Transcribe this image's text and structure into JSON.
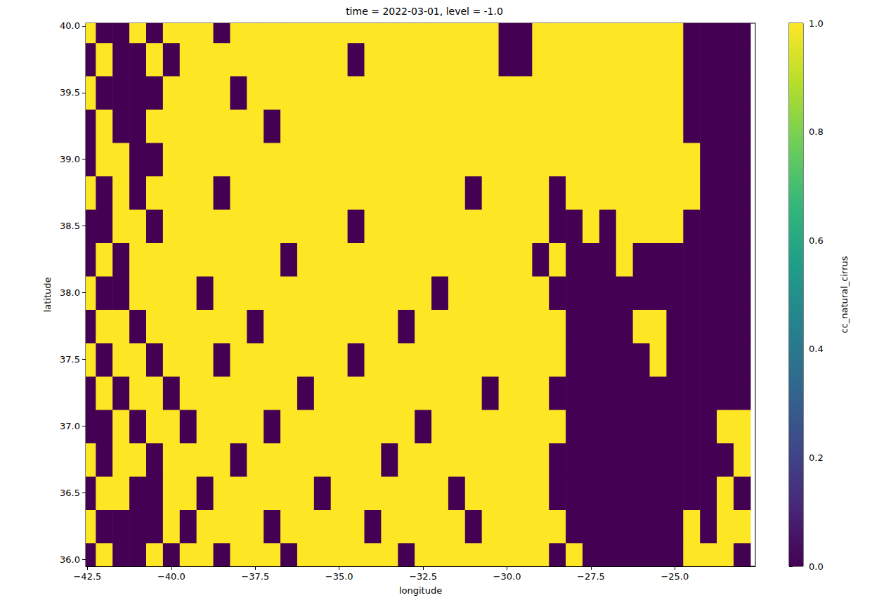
{
  "chart_data": {
    "type": "heatmap",
    "title": "time = 2022-03-01, level = -1.0",
    "xlabel": "longitude",
    "ylabel": "latitude",
    "grid": false,
    "x": [
      -42.5,
      -42.0,
      -41.5,
      -41.0,
      -40.5,
      -40.0,
      -39.5,
      -39.0,
      -38.5,
      -38.0,
      -37.5,
      -37.0,
      -36.5,
      -36.0,
      -35.5,
      -35.0,
      -34.5,
      -34.0,
      -33.5,
      -33.0,
      -32.5,
      -32.0,
      -31.5,
      -31.0,
      -30.5,
      -30.0,
      -29.5,
      -29.0,
      -28.5,
      -28.0,
      -27.5,
      -27.0,
      -26.5,
      -26.0,
      -25.5,
      -25.0,
      -24.5,
      -24.0,
      -23.5,
      -23.0
    ],
    "y": [
      36.0,
      36.25,
      36.5,
      36.75,
      37.0,
      37.25,
      37.5,
      37.75,
      38.0,
      38.25,
      38.5,
      38.75,
      39.0,
      39.25,
      39.5,
      39.75,
      40.0
    ],
    "z": [
      [
        0,
        1,
        0,
        0,
        1,
        0,
        1,
        1,
        0,
        1,
        1,
        1,
        0,
        1,
        1,
        1,
        1,
        1,
        1,
        0,
        1,
        1,
        1,
        1,
        1,
        1,
        1,
        1,
        0,
        1,
        0,
        0,
        0,
        0,
        0,
        0,
        1,
        1,
        1,
        0
      ],
      [
        1,
        0,
        0,
        0,
        0,
        1,
        0,
        1,
        1,
        1,
        1,
        0,
        1,
        1,
        1,
        1,
        1,
        0,
        1,
        1,
        1,
        1,
        1,
        0,
        1,
        1,
        1,
        1,
        1,
        0,
        0,
        0,
        0,
        0,
        0,
        0,
        1,
        0,
        1,
        1
      ],
      [
        0,
        1,
        1,
        0,
        0,
        1,
        1,
        0,
        1,
        1,
        1,
        1,
        1,
        1,
        0,
        1,
        1,
        1,
        1,
        1,
        1,
        1,
        0,
        1,
        1,
        1,
        1,
        1,
        0,
        0,
        0,
        0,
        0,
        0,
        0,
        0,
        0,
        0,
        1,
        0
      ],
      [
        1,
        0,
        1,
        1,
        0,
        1,
        1,
        1,
        1,
        0,
        1,
        1,
        1,
        1,
        1,
        1,
        1,
        1,
        0,
        1,
        1,
        1,
        1,
        1,
        1,
        1,
        1,
        1,
        0,
        0,
        0,
        0,
        0,
        0,
        0,
        0,
        0,
        0,
        0,
        1
      ],
      [
        0,
        0,
        1,
        0,
        1,
        1,
        0,
        1,
        1,
        1,
        1,
        0,
        1,
        1,
        1,
        1,
        1,
        1,
        1,
        1,
        0,
        1,
        1,
        1,
        1,
        1,
        1,
        1,
        1,
        0,
        0,
        0,
        0,
        0,
        0,
        0,
        0,
        0,
        1,
        1
      ],
      [
        0,
        1,
        0,
        1,
        1,
        0,
        1,
        1,
        1,
        1,
        1,
        1,
        1,
        0,
        1,
        1,
        1,
        1,
        1,
        1,
        1,
        1,
        1,
        1,
        0,
        1,
        1,
        1,
        0,
        0,
        0,
        0,
        0,
        0,
        0,
        0,
        0,
        0,
        0,
        0
      ],
      [
        1,
        0,
        1,
        1,
        0,
        1,
        1,
        1,
        0,
        1,
        1,
        1,
        1,
        1,
        1,
        1,
        0,
        1,
        1,
        1,
        1,
        1,
        1,
        1,
        1,
        1,
        1,
        1,
        1,
        0,
        0,
        0,
        0,
        0,
        1,
        0,
        0,
        0,
        0,
        0
      ],
      [
        0,
        1,
        1,
        0,
        1,
        1,
        1,
        1,
        1,
        1,
        0,
        1,
        1,
        1,
        1,
        1,
        1,
        1,
        1,
        0,
        1,
        1,
        1,
        1,
        1,
        1,
        1,
        1,
        1,
        0,
        0,
        0,
        0,
        1,
        1,
        0,
        0,
        0,
        0,
        0
      ],
      [
        1,
        0,
        0,
        1,
        1,
        1,
        1,
        0,
        1,
        1,
        1,
        1,
        1,
        1,
        1,
        1,
        1,
        1,
        1,
        1,
        1,
        0,
        1,
        1,
        1,
        1,
        1,
        1,
        0,
        0,
        0,
        0,
        0,
        0,
        0,
        0,
        0,
        0,
        0,
        0
      ],
      [
        0,
        1,
        0,
        1,
        1,
        1,
        1,
        1,
        1,
        1,
        1,
        1,
        0,
        1,
        1,
        1,
        1,
        1,
        1,
        1,
        1,
        1,
        1,
        1,
        1,
        1,
        1,
        0,
        1,
        0,
        0,
        0,
        1,
        0,
        0,
        0,
        0,
        0,
        0,
        0
      ],
      [
        0,
        0,
        1,
        1,
        0,
        1,
        1,
        1,
        1,
        1,
        1,
        1,
        1,
        1,
        1,
        1,
        0,
        1,
        1,
        1,
        1,
        1,
        1,
        1,
        1,
        1,
        1,
        1,
        0,
        0,
        1,
        0,
        1,
        1,
        1,
        1,
        0,
        0,
        0,
        0
      ],
      [
        1,
        0,
        1,
        0,
        1,
        1,
        1,
        1,
        0,
        1,
        1,
        1,
        1,
        1,
        1,
        1,
        1,
        1,
        1,
        1,
        1,
        1,
        1,
        0,
        1,
        1,
        1,
        1,
        0,
        1,
        1,
        1,
        1,
        1,
        1,
        1,
        1,
        0,
        0,
        0
      ],
      [
        0,
        1,
        1,
        0,
        0,
        1,
        1,
        1,
        1,
        1,
        1,
        1,
        1,
        1,
        1,
        1,
        1,
        1,
        1,
        1,
        1,
        1,
        1,
        1,
        1,
        1,
        1,
        1,
        1,
        1,
        1,
        1,
        1,
        1,
        1,
        1,
        1,
        0,
        0,
        0
      ],
      [
        0,
        1,
        0,
        0,
        1,
        1,
        1,
        1,
        1,
        1,
        1,
        0,
        1,
        1,
        1,
        1,
        1,
        1,
        1,
        1,
        1,
        1,
        1,
        1,
        1,
        1,
        1,
        1,
        1,
        1,
        1,
        1,
        1,
        1,
        1,
        1,
        0,
        0,
        0,
        0
      ],
      [
        1,
        0,
        0,
        0,
        0,
        1,
        1,
        1,
        1,
        0,
        1,
        1,
        1,
        1,
        1,
        1,
        1,
        1,
        1,
        1,
        1,
        1,
        1,
        1,
        1,
        1,
        1,
        1,
        1,
        1,
        1,
        1,
        1,
        1,
        1,
        1,
        0,
        0,
        0,
        0
      ],
      [
        0,
        1,
        0,
        0,
        1,
        0,
        1,
        1,
        1,
        1,
        1,
        1,
        1,
        1,
        1,
        1,
        0,
        1,
        1,
        1,
        1,
        1,
        1,
        1,
        1,
        0,
        0,
        1,
        1,
        1,
        1,
        1,
        1,
        1,
        1,
        1,
        0,
        0,
        0,
        0
      ],
      [
        1,
        0,
        0,
        1,
        0,
        1,
        1,
        1,
        0,
        1,
        1,
        1,
        1,
        1,
        1,
        1,
        1,
        1,
        1,
        1,
        1,
        1,
        1,
        1,
        1,
        0,
        0,
        1,
        1,
        1,
        1,
        1,
        1,
        1,
        1,
        1,
        0,
        0,
        0,
        0
      ]
    ],
    "xlim": [
      -42.55,
      -22.6
    ],
    "ylim": [
      35.95,
      40.02
    ],
    "xticks": [
      {
        "value": -42.5,
        "label": "−42.5"
      },
      {
        "value": -40,
        "label": "−40.0"
      },
      {
        "value": -37.5,
        "label": "−37.5"
      },
      {
        "value": -35,
        "label": "−35.0"
      },
      {
        "value": -32.5,
        "label": "−32.5"
      },
      {
        "value": -30,
        "label": "−30.0"
      },
      {
        "value": -27.5,
        "label": "−27.5"
      },
      {
        "value": -25,
        "label": "−25.0"
      }
    ],
    "yticks": [
      {
        "value": 36,
        "label": "36.0"
      },
      {
        "value": 36.5,
        "label": "36.5"
      },
      {
        "value": 37,
        "label": "37.0"
      },
      {
        "value": 37.5,
        "label": "37.5"
      },
      {
        "value": 38,
        "label": "38.0"
      },
      {
        "value": 38.5,
        "label": "38.5"
      },
      {
        "value": 39,
        "label": "39.0"
      },
      {
        "value": 39.5,
        "label": "39.5"
      },
      {
        "value": 40,
        "label": "40.0"
      }
    ],
    "colorbar": {
      "label": "cc_natural_cirrus",
      "range": [
        0,
        1
      ],
      "ticks": [
        {
          "value": 0,
          "label": "0.0"
        },
        {
          "value": 0.2,
          "label": "0.2"
        },
        {
          "value": 0.4,
          "label": "0.4"
        },
        {
          "value": 0.6,
          "label": "0.6"
        },
        {
          "value": 0.8,
          "label": "0.8"
        },
        {
          "value": 1,
          "label": "1.0"
        }
      ]
    }
  }
}
